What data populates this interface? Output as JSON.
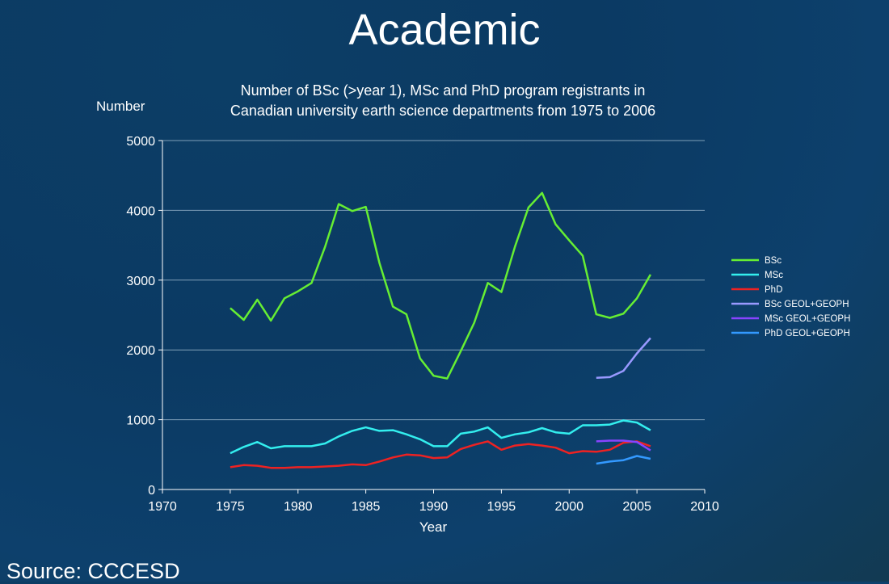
{
  "slide": {
    "title": "Academic",
    "source": "Source: CCCESD"
  },
  "chart_data": {
    "type": "line",
    "title": "Number of BSc (>year 1), MSc and PhD program registrants in Canadian university earth science departments from 1975 to 2006",
    "title_lines": [
      "Number of BSc (>year 1), MSc and PhD program registrants in",
      "Canadian university earth science departments from 1975 to 2006"
    ],
    "xlabel": "Year",
    "ylabel": "Number",
    "xlim": [
      1970,
      2010
    ],
    "ylim": [
      0,
      5000
    ],
    "xticks": [
      1970,
      1975,
      1980,
      1985,
      1990,
      1995,
      2000,
      2005,
      2010
    ],
    "yticks": [
      0,
      1000,
      2000,
      3000,
      4000,
      5000
    ],
    "grid": "horizontal",
    "legend_position": "right",
    "series": [
      {
        "name": "BSc",
        "color": "#66ee33",
        "x": [
          1975,
          1976,
          1977,
          1978,
          1979,
          1980,
          1981,
          1982,
          1983,
          1984,
          1985,
          1986,
          1987,
          1988,
          1989,
          1990,
          1991,
          1992,
          1993,
          1994,
          1995,
          1996,
          1997,
          1998,
          1999,
          2000,
          2001,
          2002,
          2003,
          2004,
          2005,
          2006
        ],
        "y": [
          2600,
          2430,
          2720,
          2420,
          2740,
          2840,
          2960,
          3480,
          4090,
          3990,
          4050,
          3250,
          2620,
          2510,
          1880,
          1630,
          1590,
          1980,
          2390,
          2960,
          2830,
          3480,
          4040,
          4250,
          3800,
          3570,
          3350,
          2510,
          2460,
          2520,
          2740,
          3080
        ]
      },
      {
        "name": "MSc",
        "color": "#33eeee",
        "x": [
          1975,
          1976,
          1977,
          1978,
          1979,
          1980,
          1981,
          1982,
          1983,
          1984,
          1985,
          1986,
          1987,
          1988,
          1989,
          1990,
          1991,
          1992,
          1993,
          1994,
          1995,
          1996,
          1997,
          1998,
          1999,
          2000,
          2001,
          2002,
          2003,
          2004,
          2005,
          2006
        ],
        "y": [
          520,
          610,
          680,
          590,
          620,
          620,
          620,
          660,
          760,
          840,
          890,
          840,
          850,
          790,
          720,
          620,
          620,
          800,
          830,
          890,
          740,
          790,
          820,
          880,
          820,
          800,
          920,
          920,
          930,
          990,
          960,
          850
        ]
      },
      {
        "name": "PhD",
        "color": "#ee2222",
        "x": [
          1975,
          1976,
          1977,
          1978,
          1979,
          1980,
          1981,
          1982,
          1983,
          1984,
          1985,
          1986,
          1987,
          1988,
          1989,
          1990,
          1991,
          1992,
          1993,
          1994,
          1995,
          1996,
          1997,
          1998,
          1999,
          2000,
          2001,
          2002,
          2003,
          2004,
          2005,
          2006
        ],
        "y": [
          320,
          350,
          340,
          310,
          310,
          320,
          320,
          330,
          340,
          360,
          350,
          400,
          460,
          500,
          490,
          450,
          460,
          580,
          640,
          690,
          570,
          630,
          650,
          630,
          600,
          520,
          550,
          540,
          570,
          670,
          690,
          620
        ]
      },
      {
        "name": "BSc GEOL+GEOPH",
        "color": "#9999ff",
        "x": [
          2002,
          2003,
          2004,
          2005,
          2006
        ],
        "y": [
          1600,
          1610,
          1700,
          1950,
          2170
        ]
      },
      {
        "name": "MSc GEOL+GEOPH",
        "color": "#8844ff",
        "x": [
          2002,
          2003,
          2004,
          2005,
          2006
        ],
        "y": [
          690,
          700,
          700,
          680,
          560
        ]
      },
      {
        "name": "PhD GEOL+GEOPH",
        "color": "#3399ff",
        "x": [
          2002,
          2003,
          2004,
          2005,
          2006
        ],
        "y": [
          370,
          400,
          420,
          480,
          440
        ]
      }
    ]
  }
}
